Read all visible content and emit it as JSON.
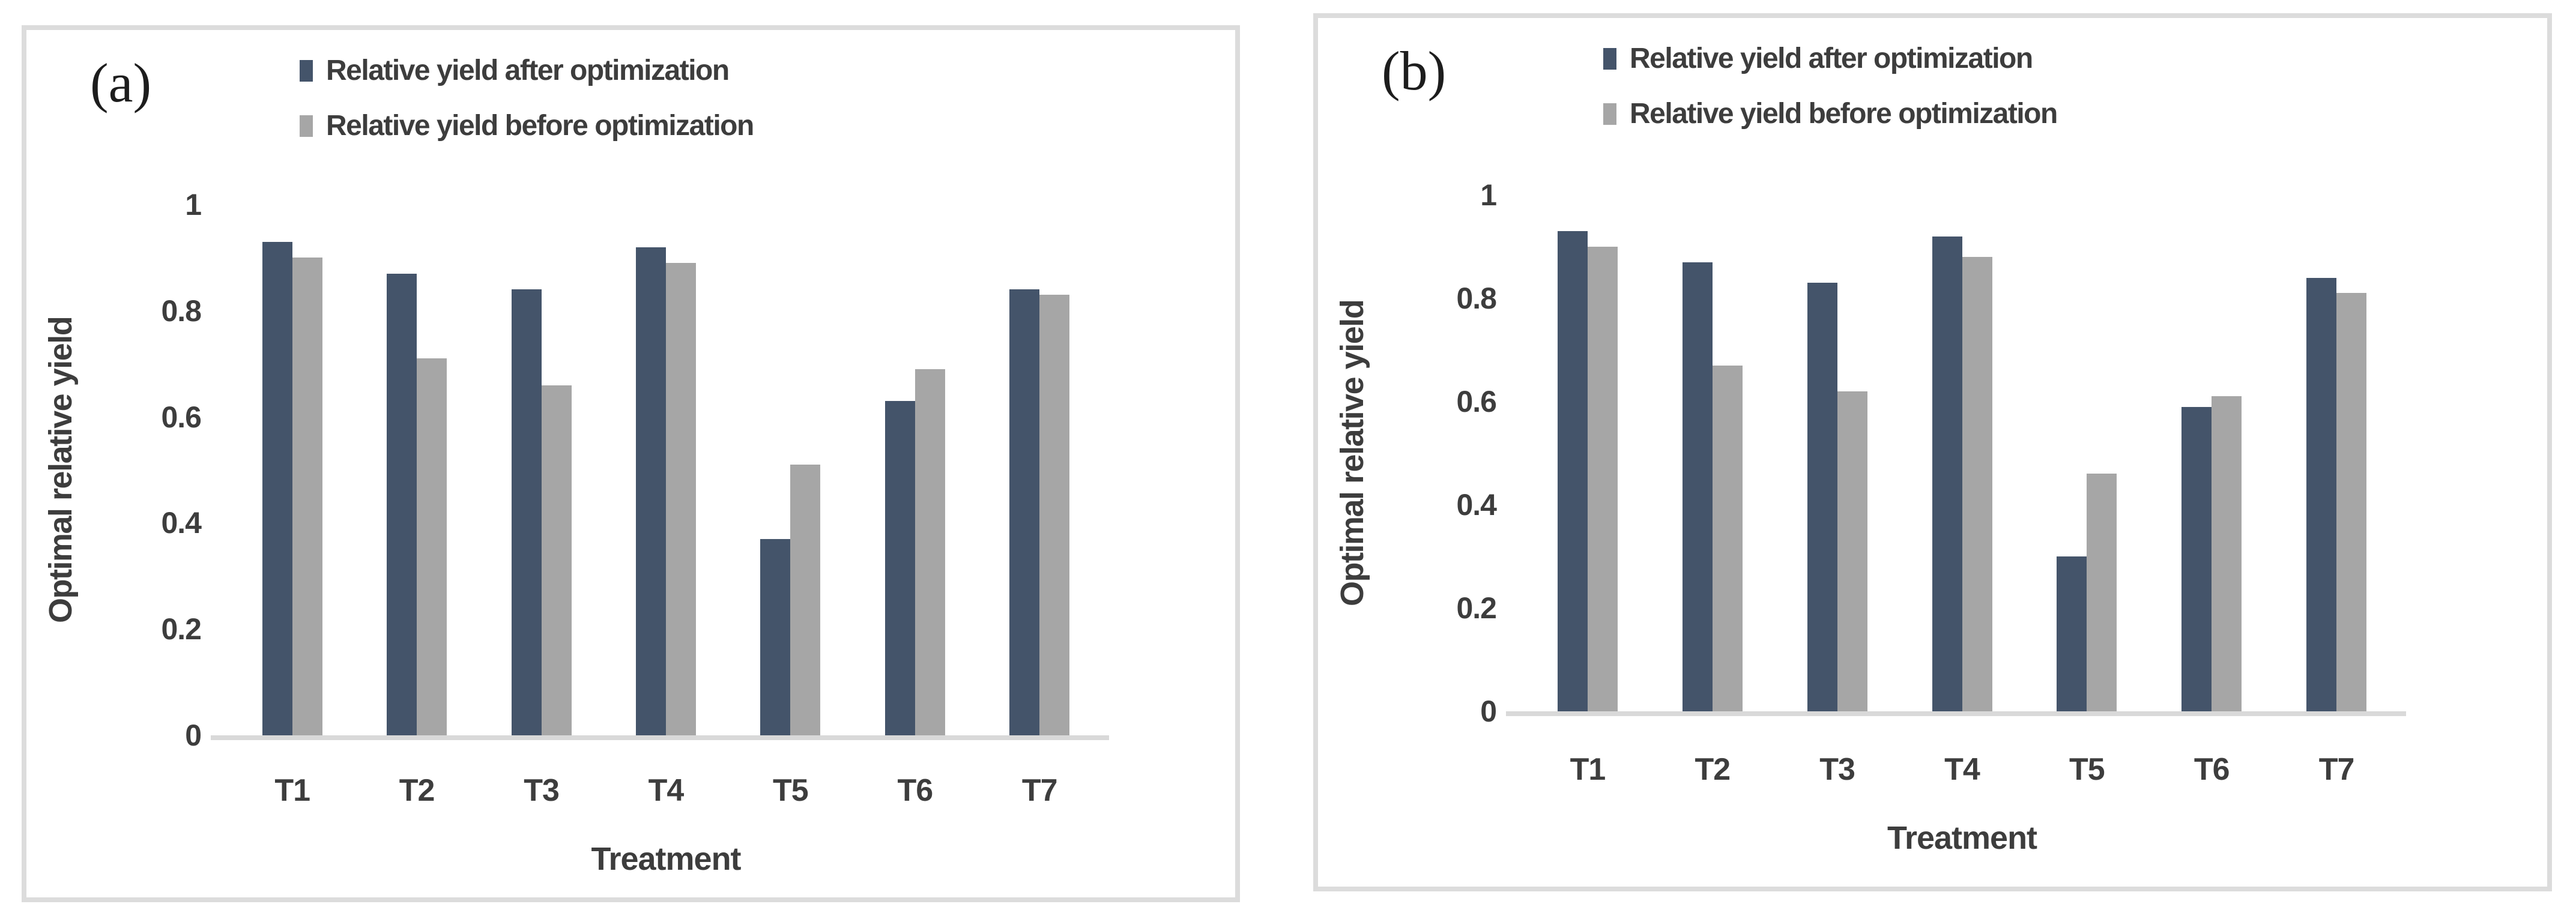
{
  "colors": {
    "series_after": "#44546A",
    "series_before": "#A6A6A6",
    "axis_line": "#D9D9D9",
    "panel_border": "#DCDCDC",
    "text": "#3D3D3D",
    "background": "#FFFFFF"
  },
  "chart_data": [
    {
      "type": "bar",
      "panel_label": "(a)",
      "categories": [
        "T1",
        "T2",
        "T3",
        "T4",
        "T5",
        "T6",
        "T7"
      ],
      "series": [
        {
          "name": "Relative yield after optimization",
          "color_key": "series_after",
          "values": [
            0.93,
            0.87,
            0.84,
            0.92,
            0.37,
            0.63,
            0.84
          ]
        },
        {
          "name": "Relative yield before optimization",
          "color_key": "series_before",
          "values": [
            0.9,
            0.71,
            0.66,
            0.89,
            0.51,
            0.69,
            0.83
          ]
        }
      ],
      "xlabel": "Treatment",
      "ylabel": "Optimal relative yield",
      "ylim": [
        0,
        1
      ],
      "yticks": [
        0,
        0.2,
        0.4,
        0.6,
        0.8,
        1
      ],
      "yticklabels": [
        "0",
        "0.2",
        "0.4",
        "0.6",
        "0.8",
        "1"
      ],
      "grid": false,
      "legend_position": "top"
    },
    {
      "type": "bar",
      "panel_label": "(b)",
      "categories": [
        "T1",
        "T2",
        "T3",
        "T4",
        "T5",
        "T6",
        "T7"
      ],
      "series": [
        {
          "name": "Relative yield after optimization",
          "color_key": "series_after",
          "values": [
            0.93,
            0.87,
            0.83,
            0.92,
            0.3,
            0.59,
            0.84
          ]
        },
        {
          "name": "Relative yield before optimization",
          "color_key": "series_before",
          "values": [
            0.9,
            0.67,
            0.62,
            0.88,
            0.46,
            0.61,
            0.81
          ]
        }
      ],
      "xlabel": "Treatment",
      "ylabel": "Optimal relative yield",
      "ylim": [
        0,
        1
      ],
      "yticks": [
        0,
        0.2,
        0.4,
        0.6,
        0.8,
        1
      ],
      "yticklabels": [
        "0",
        "0.2",
        "0.4",
        "0.6",
        "0.8",
        "1"
      ],
      "grid": false,
      "legend_position": "top"
    }
  ]
}
